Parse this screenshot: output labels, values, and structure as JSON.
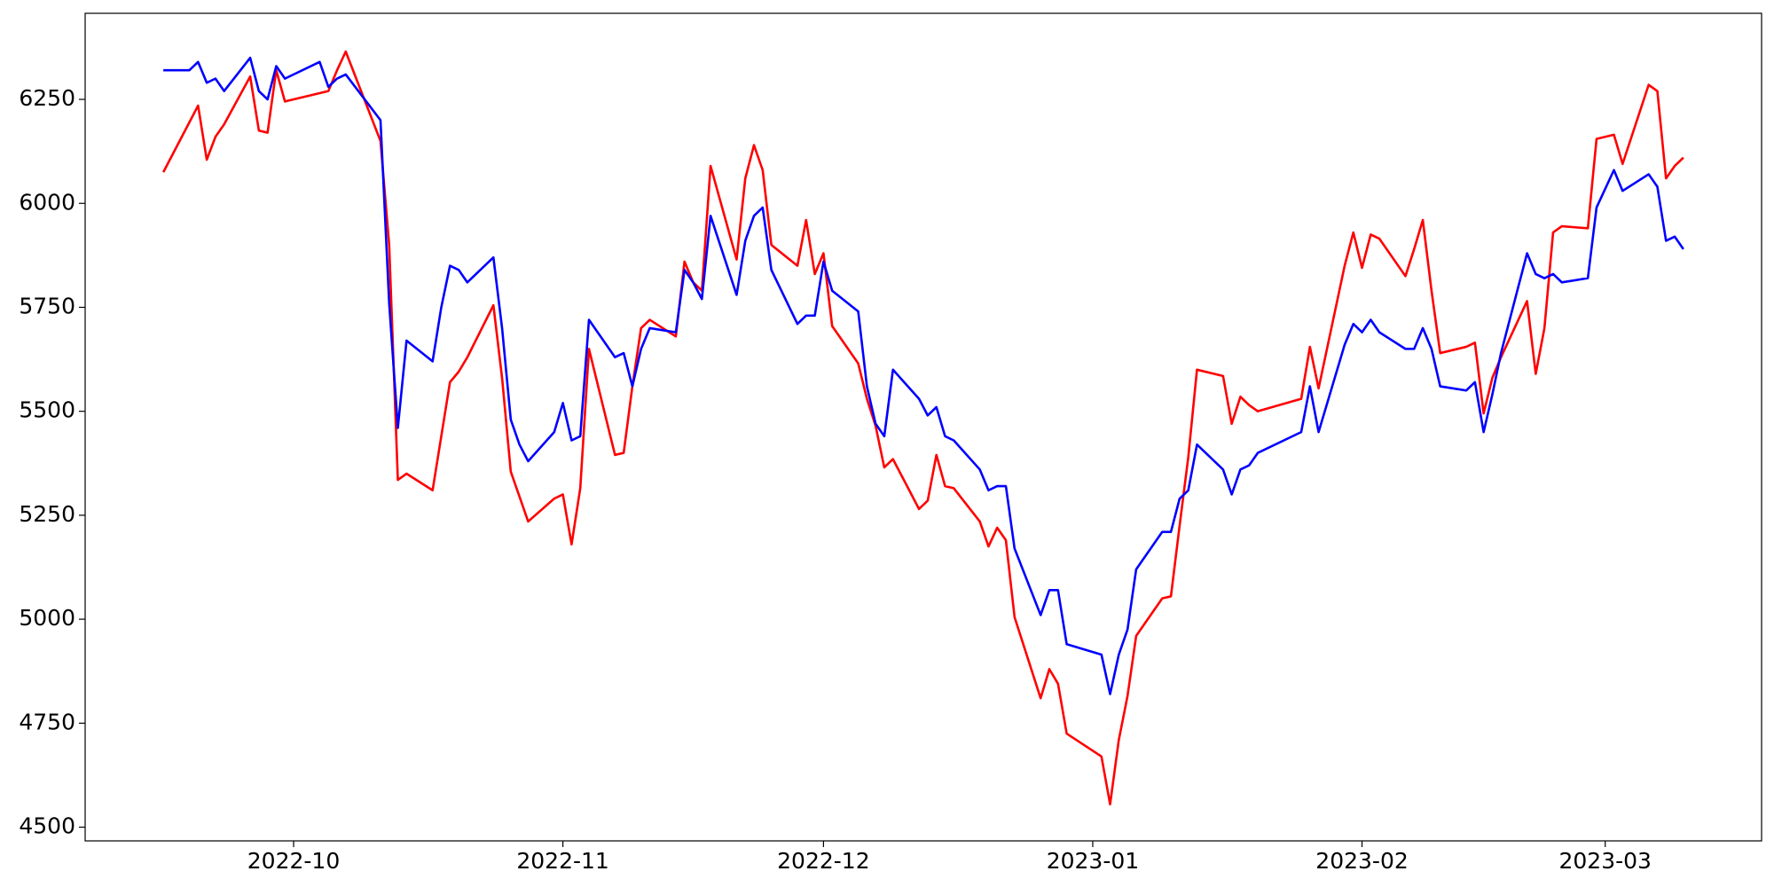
{
  "chart_data": {
    "type": "line",
    "x": [
      -15,
      -12,
      -11,
      -10,
      -9,
      -8,
      -5,
      -4,
      -3,
      -2,
      -1,
      3,
      4,
      5,
      6,
      10,
      11,
      12,
      13,
      16,
      17,
      18,
      19,
      20,
      23,
      24,
      25,
      26,
      27,
      30,
      31,
      32,
      33,
      34,
      37,
      38,
      39,
      40,
      41,
      44,
      45,
      46,
      47,
      48,
      51,
      52,
      53,
      54,
      55,
      58,
      59,
      60,
      61,
      62,
      65,
      66,
      67,
      68,
      69,
      72,
      73,
      74,
      75,
      76,
      79,
      80,
      81,
      82,
      83,
      86,
      87,
      88,
      89,
      93,
      94,
      95,
      96,
      97,
      100,
      101,
      102,
      103,
      104,
      107,
      108,
      109,
      110,
      111,
      116,
      117,
      118,
      121,
      122,
      123,
      124,
      125,
      128,
      129,
      130,
      131,
      132,
      135,
      136,
      137,
      138,
      139,
      142,
      143,
      144,
      145,
      146,
      149,
      150,
      152,
      153,
      156,
      157,
      158,
      159,
      160
    ],
    "series": [
      {
        "color": "#ff0000",
        "values": [
          6075,
          6195,
          6235,
          6105,
          6160,
          6190,
          6305,
          6175,
          6170,
          6320,
          6245,
          6265,
          6270,
          6320,
          6365,
          6150,
          5900,
          5335,
          5350,
          5310,
          5440,
          5570,
          5595,
          5630,
          5755,
          5580,
          5355,
          5295,
          5235,
          5290,
          5300,
          5180,
          5315,
          5650,
          5395,
          5400,
          5560,
          5700,
          5720,
          5680,
          5860,
          5810,
          5790,
          6090,
          5865,
          6060,
          6140,
          6080,
          5900,
          5850,
          5960,
          5830,
          5880,
          5705,
          5615,
          5530,
          5465,
          5365,
          5385,
          5265,
          5285,
          5395,
          5320,
          5315,
          5235,
          5175,
          5220,
          5190,
          5005,
          4810,
          4880,
          4845,
          4725,
          4670,
          4555,
          4710,
          4815,
          4960,
          5050,
          5055,
          5225,
          5390,
          5600,
          5585,
          5470,
          5535,
          5515,
          5500,
          5530,
          5655,
          5555,
          5850,
          5930,
          5845,
          5925,
          5915,
          5825,
          5890,
          5960,
          5790,
          5640,
          5655,
          5665,
          5495,
          5580,
          5630,
          5765,
          5590,
          5700,
          5930,
          5945,
          5940,
          6155,
          6165,
          6095,
          6285,
          6270,
          6060,
          6090,
          6110
        ]
      },
      {
        "color": "#0000ff",
        "values": [
          6320,
          6320,
          6340,
          6290,
          6300,
          6270,
          6350,
          6270,
          6250,
          6330,
          6300,
          6340,
          6280,
          6300,
          6310,
          6200,
          5760,
          5460,
          5670,
          5620,
          5750,
          5850,
          5840,
          5810,
          5870,
          5700,
          5480,
          5420,
          5380,
          5450,
          5520,
          5430,
          5440,
          5720,
          5630,
          5640,
          5560,
          5650,
          5700,
          5690,
          5840,
          5810,
          5770,
          5970,
          5780,
          5910,
          5970,
          5990,
          5840,
          5710,
          5730,
          5730,
          5860,
          5790,
          5740,
          5560,
          5470,
          5440,
          5600,
          5530,
          5490,
          5510,
          5440,
          5430,
          5360,
          5310,
          5320,
          5320,
          5170,
          5010,
          5070,
          5070,
          4940,
          4915,
          4820,
          4915,
          4975,
          5120,
          5210,
          5210,
          5290,
          5310,
          5420,
          5360,
          5300,
          5360,
          5370,
          5400,
          5450,
          5560,
          5450,
          5660,
          5710,
          5690,
          5720,
          5690,
          5650,
          5650,
          5700,
          5650,
          5560,
          5550,
          5570,
          5450,
          5540,
          5640,
          5880,
          5830,
          5820,
          5830,
          5810,
          5820,
          5990,
          6080,
          6030,
          6070,
          6040,
          5910,
          5920,
          5890
        ]
      }
    ],
    "xlim": [
      -24,
      169
    ],
    "xticks": [
      {
        "value": 0,
        "label": "2022-10"
      },
      {
        "value": 31,
        "label": "2022-11"
      },
      {
        "value": 61,
        "label": "2022-12"
      },
      {
        "value": 92,
        "label": "2023-01"
      },
      {
        "value": 123,
        "label": "2023-02"
      },
      {
        "value": 151,
        "label": "2023-03"
      }
    ],
    "ylim": [
      4467,
      6457
    ],
    "yticks": [
      4500,
      4750,
      5000,
      5250,
      5500,
      5750,
      6000,
      6250
    ],
    "grid": false
  }
}
